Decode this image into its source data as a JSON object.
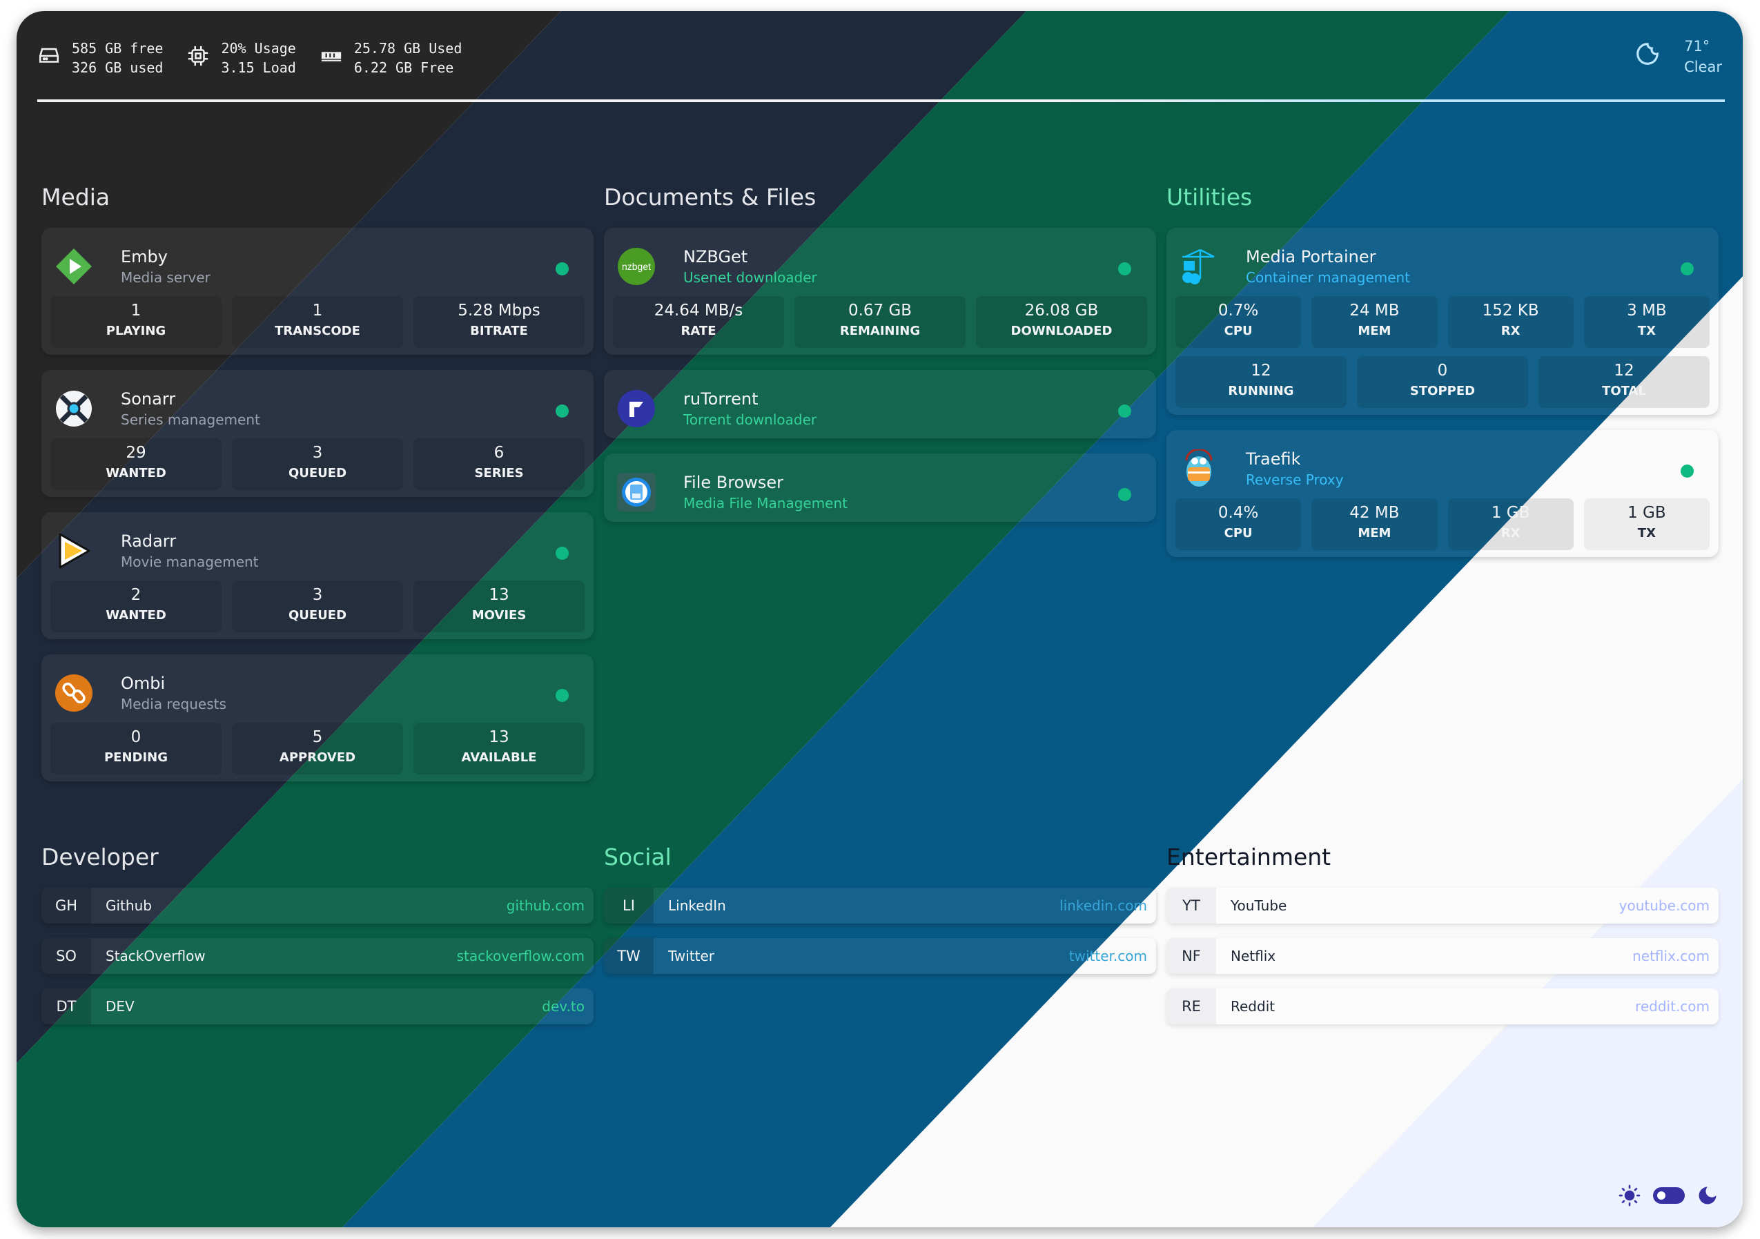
{
  "colors": {
    "dark": "#262626",
    "navy": "#1e293b",
    "green": "#075e44",
    "blue": "#075985",
    "white": "#fafafa",
    "lavender": "#eef2ff",
    "status_ok": "#10b981",
    "accent": "#3730a3"
  },
  "header": {
    "disk": {
      "icon": "hard-drive-icon",
      "line1": "585 GB free",
      "line2": "326 GB used"
    },
    "cpu": {
      "icon": "cpu-icon",
      "line1": "20% Usage",
      "line2": "3.15 Load"
    },
    "memory": {
      "icon": "memory-icon",
      "line1": "25.78 GB Used",
      "line2": "6.22 GB Free"
    },
    "weather": {
      "icon": "moon-outline-icon",
      "temp": "71°",
      "condition": "Clear"
    }
  },
  "service_groups": [
    {
      "title": "Media",
      "title_color": "#e5e7eb",
      "sub_color": "#9ca3af",
      "services": [
        {
          "name": "Emby",
          "description": "Media server",
          "icon": "emby",
          "status": "up",
          "stats": [
            {
              "value": "1",
              "label": "PLAYING"
            },
            {
              "value": "1",
              "label": "TRANSCODE"
            },
            {
              "value": "5.28 Mbps",
              "label": "BITRATE"
            }
          ]
        },
        {
          "name": "Sonarr",
          "description": "Series management",
          "icon": "sonarr",
          "status": "up",
          "stats": [
            {
              "value": "29",
              "label": "WANTED"
            },
            {
              "value": "3",
              "label": "QUEUED"
            },
            {
              "value": "6",
              "label": "SERIES"
            }
          ]
        },
        {
          "name": "Radarr",
          "description": "Movie management",
          "icon": "radarr",
          "status": "up",
          "stats": [
            {
              "value": "2",
              "label": "WANTED"
            },
            {
              "value": "3",
              "label": "QUEUED"
            },
            {
              "value": "13",
              "label": "MOVIES"
            }
          ]
        },
        {
          "name": "Ombi",
          "description": "Media requests",
          "icon": "ombi",
          "status": "up",
          "stats": [
            {
              "value": "0",
              "label": "PENDING"
            },
            {
              "value": "5",
              "label": "APPROVED"
            },
            {
              "value": "13",
              "label": "AVAILABLE"
            }
          ]
        }
      ]
    },
    {
      "title": "Documents & Files",
      "title_color": "#e5e7eb",
      "sub_color": "#34d399",
      "services": [
        {
          "name": "NZBGet",
          "description": "Usenet downloader",
          "icon": "nzbget",
          "logo_text": "nzbget",
          "status": "up",
          "stats": [
            {
              "value": "24.64 MB/s",
              "label": "RATE"
            },
            {
              "value": "0.67 GB",
              "label": "REMAINING"
            },
            {
              "value": "26.08 GB",
              "label": "DOWNLOADED"
            }
          ]
        },
        {
          "name": "ruTorrent",
          "description": "Torrent downloader",
          "icon": "rutorrent",
          "status": "up",
          "stats": []
        },
        {
          "name": "File Browser",
          "description": "Media File Management",
          "icon": "filebrowser",
          "status": "up",
          "stats": []
        }
      ]
    },
    {
      "title": "Utilities",
      "title_color": "#6ee7b7",
      "sub_color": "#38bdf8",
      "services": [
        {
          "name": "Media Portainer",
          "description": "Container management",
          "icon": "portainer",
          "status": "up",
          "stats": [
            {
              "value": "0.7%",
              "label": "CPU"
            },
            {
              "value": "24 MB",
              "label": "MEM"
            },
            {
              "value": "152 KB",
              "label": "RX"
            },
            {
              "value": "3 MB",
              "label": "TX"
            }
          ],
          "stats2": [
            {
              "value": "12",
              "label": "RUNNING"
            },
            {
              "value": "0",
              "label": "STOPPED"
            },
            {
              "value": "12",
              "label": "TOTAL"
            }
          ]
        },
        {
          "name": "Traefik",
          "description": "Reverse Proxy",
          "icon": "traefik",
          "status": "up",
          "stats": [
            {
              "value": "0.4%",
              "label": "CPU"
            },
            {
              "value": "42 MB",
              "label": "MEM"
            },
            {
              "value": "1 GB",
              "label": "RX"
            },
            {
              "value": "1 GB",
              "label": "TX"
            }
          ]
        }
      ]
    }
  ],
  "bookmark_groups": [
    {
      "title": "Developer",
      "title_color": "#e5e7eb",
      "url_color": "#34d399",
      "items": [
        {
          "abbr": "GH",
          "name": "Github",
          "url": "github.com"
        },
        {
          "abbr": "SO",
          "name": "StackOverflow",
          "url": "stackoverflow.com"
        },
        {
          "abbr": "DT",
          "name": "DEV",
          "url": "dev.to"
        }
      ]
    },
    {
      "title": "Social",
      "title_color": "#6ee7b7",
      "url_color": "#38a5d8",
      "items": [
        {
          "abbr": "LI",
          "name": "LinkedIn",
          "url": "linkedin.com"
        },
        {
          "abbr": "TW",
          "name": "Twitter",
          "url": "twitter.com"
        }
      ]
    },
    {
      "title": "Entertainment",
      "title_color": "#111827",
      "url_color": "#a5b4fc",
      "items": [
        {
          "abbr": "YT",
          "name": "YouTube",
          "url": "youtube.com"
        },
        {
          "abbr": "NF",
          "name": "Netflix",
          "url": "netflix.com"
        },
        {
          "abbr": "RE",
          "name": "Reddit",
          "url": "reddit.com"
        }
      ]
    }
  ],
  "theme_toggle": {
    "mode": "dark",
    "icons": [
      "sun-icon",
      "toggle-icon",
      "moon-icon"
    ]
  }
}
